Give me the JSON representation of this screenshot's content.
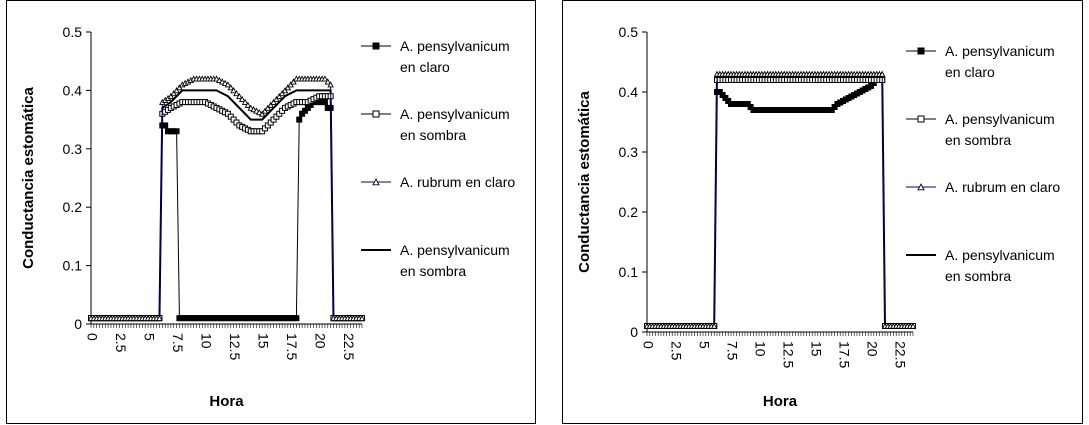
{
  "chart_data": [
    {
      "type": "line",
      "xlabel": "Hora",
      "ylabel": "Conductancia estomática",
      "ylim": [
        0,
        0.5
      ],
      "yticks": [
        "0",
        "0.1",
        "0.2",
        "0.3",
        "0.4",
        "0.5"
      ],
      "xlim": [
        0,
        23.75
      ],
      "xticks": [
        "0",
        "2.5",
        "5",
        "7.5",
        "10",
        "12.5",
        "15",
        "17.5",
        "20",
        "22.5"
      ],
      "legend_position": "right",
      "series": [
        {
          "name": "A. pensylvanicum en claro",
          "marker": "filled-square",
          "color": "#000000",
          "line_color": "#000000",
          "points": [
            [
              0,
              0.01
            ],
            [
              6,
              0.01
            ],
            [
              6.25,
              0.34
            ],
            [
              6.5,
              0.34
            ],
            [
              6.75,
              0.33
            ],
            [
              7.5,
              0.33
            ],
            [
              7.75,
              0.01
            ],
            [
              18,
              0.01
            ],
            [
              18.25,
              0.35
            ],
            [
              18.5,
              0.36
            ],
            [
              19,
              0.37
            ],
            [
              19.5,
              0.38
            ],
            [
              20.5,
              0.38
            ],
            [
              20.75,
              0.37
            ],
            [
              21,
              0.37
            ],
            [
              21.25,
              0.01
            ],
            [
              23.75,
              0.01
            ]
          ]
        },
        {
          "name": "A. pensylvanicum en sombra",
          "marker": "open-square",
          "color": "#000000",
          "line_color": "#000000",
          "points": [
            [
              0,
              0.01
            ],
            [
              6,
              0.01
            ],
            [
              6.25,
              0.36
            ],
            [
              7,
              0.37
            ],
            [
              8,
              0.38
            ],
            [
              10,
              0.38
            ],
            [
              11,
              0.37
            ],
            [
              12,
              0.36
            ],
            [
              13,
              0.34
            ],
            [
              14,
              0.33
            ],
            [
              15,
              0.33
            ],
            [
              16,
              0.35
            ],
            [
              17,
              0.37
            ],
            [
              18,
              0.38
            ],
            [
              19,
              0.38
            ],
            [
              20,
              0.39
            ],
            [
              21,
              0.39
            ],
            [
              21.25,
              0.01
            ],
            [
              23.75,
              0.01
            ]
          ]
        },
        {
          "name": "A. rubrum en claro",
          "marker": "open-triangle",
          "color": "#000000",
          "line_color": "#00007f",
          "points": [
            [
              0,
              0.01
            ],
            [
              6,
              0.01
            ],
            [
              6.25,
              0.38
            ],
            [
              7,
              0.39
            ],
            [
              8,
              0.41
            ],
            [
              9,
              0.42
            ],
            [
              11,
              0.42
            ],
            [
              12,
              0.41
            ],
            [
              13,
              0.39
            ],
            [
              14,
              0.37
            ],
            [
              15,
              0.36
            ],
            [
              16,
              0.38
            ],
            [
              17,
              0.4
            ],
            [
              18,
              0.42
            ],
            [
              20.5,
              0.42
            ],
            [
              21,
              0.41
            ],
            [
              21.25,
              0.01
            ],
            [
              23.75,
              0.01
            ]
          ]
        },
        {
          "name": "A. pensylvanicum en sombra",
          "marker": "none",
          "color": "#000000",
          "line_color": "#000000",
          "points": [
            [
              0,
              0.01
            ],
            [
              6,
              0.01
            ],
            [
              6.25,
              0.37
            ],
            [
              7,
              0.38
            ],
            [
              8,
              0.4
            ],
            [
              11,
              0.4
            ],
            [
              12,
              0.39
            ],
            [
              13,
              0.37
            ],
            [
              14,
              0.35
            ],
            [
              15,
              0.35
            ],
            [
              16,
              0.37
            ],
            [
              17,
              0.39
            ],
            [
              18,
              0.4
            ],
            [
              20.5,
              0.4
            ],
            [
              21,
              0.4
            ],
            [
              21.25,
              0.01
            ],
            [
              23.75,
              0.01
            ]
          ]
        }
      ]
    },
    {
      "type": "line",
      "xlabel": "Hora",
      "ylabel": "Conductancia estomática",
      "ylim": [
        0,
        0.5
      ],
      "yticks": [
        "0",
        "0.1",
        "0.2",
        "0.3",
        "0.4",
        "0.5"
      ],
      "xlim": [
        0,
        23.75
      ],
      "xticks": [
        "0",
        "2.5",
        "5",
        "7.5",
        "10",
        "12.5",
        "15",
        "17.5",
        "20",
        "22.5"
      ],
      "legend_position": "right",
      "series": [
        {
          "name": "A. pensylvanicum en claro",
          "marker": "filled-square",
          "color": "#000000",
          "line_color": "#000000",
          "points": [
            [
              0,
              0.01
            ],
            [
              6,
              0.01
            ],
            [
              6.25,
              0.4
            ],
            [
              6.5,
              0.4
            ],
            [
              7,
              0.39
            ],
            [
              7.5,
              0.38
            ],
            [
              9,
              0.38
            ],
            [
              9.5,
              0.37
            ],
            [
              16.5,
              0.37
            ],
            [
              17,
              0.38
            ],
            [
              18,
              0.39
            ],
            [
              19,
              0.4
            ],
            [
              20,
              0.41
            ],
            [
              20.5,
              0.42
            ],
            [
              21,
              0.42
            ],
            [
              21.25,
              0.01
            ],
            [
              23.75,
              0.01
            ]
          ]
        },
        {
          "name": "A. pensylvanicum en sombra",
          "marker": "open-square",
          "color": "#000000",
          "line_color": "#000000",
          "points": [
            [
              0,
              0.01
            ],
            [
              6,
              0.01
            ],
            [
              6.25,
              0.42
            ],
            [
              21,
              0.42
            ],
            [
              21.25,
              0.01
            ],
            [
              23.75,
              0.01
            ]
          ]
        },
        {
          "name": "A. rubrum en claro",
          "marker": "open-triangle",
          "color": "#000000",
          "line_color": "#00007f",
          "points": [
            [
              0,
              0.01
            ],
            [
              6,
              0.01
            ],
            [
              6.25,
              0.43
            ],
            [
              21,
              0.43
            ],
            [
              21.25,
              0.01
            ],
            [
              23.75,
              0.01
            ]
          ]
        },
        {
          "name": "A. pensylvanicum en sombra",
          "marker": "none",
          "color": "#000000",
          "line_color": "#000000",
          "points": [
            [
              0,
              0.01
            ],
            [
              6,
              0.01
            ],
            [
              6.25,
              0.43
            ],
            [
              21,
              0.43
            ],
            [
              21.25,
              0.01
            ],
            [
              23.75,
              0.01
            ]
          ]
        }
      ]
    }
  ]
}
